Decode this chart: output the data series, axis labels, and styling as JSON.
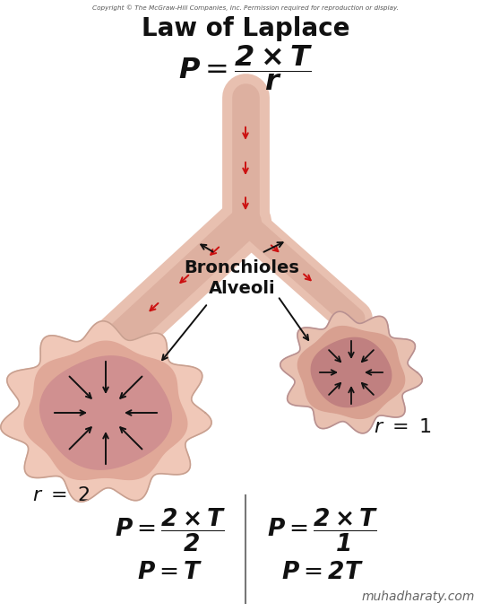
{
  "title": "Law of Laplace",
  "bg_color": "#ffffff",
  "title_fontsize": 20,
  "copyright": "Copyright © The McGraw-Hill Companies, Inc. Permission required for reproduction or display.",
  "tube_outer_color": "#e8c0b0",
  "tube_mid_color": "#ddb0a0",
  "tube_inner_color": "#c89888",
  "alv_large_outer_color": "#f0c8b8",
  "alv_large_mid_color": "#e0a898",
  "alv_large_inner_color": "#d09090",
  "alv_small_outer_color": "#e8c0b0",
  "alv_small_mid_color": "#d8a090",
  "alv_small_inner_color": "#c08080",
  "red_color": "#cc1111",
  "black_color": "#111111",
  "divider_color": "#777777",
  "watermark": "muhadharaty.com",
  "watermark_fontsize": 10
}
